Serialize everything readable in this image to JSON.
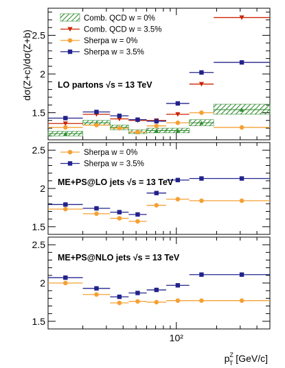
{
  "chart_data": {
    "type": "line",
    "x_scale": "log",
    "x_axis_label": "p_T^Z [GeV/c]",
    "x_tick_labels": [
      "10²"
    ],
    "x_bins": [
      [
        11,
        20
      ],
      [
        20,
        32
      ],
      [
        32,
        44
      ],
      [
        44,
        60
      ],
      [
        60,
        84
      ],
      [
        84,
        125
      ],
      [
        125,
        190
      ],
      [
        190,
        500
      ]
    ],
    "panels": [
      {
        "ylabel": "dσ(Z+c)/dσ(Z+b)",
        "ylim": [
          1.15,
          2.85
        ],
        "yticks": [
          "1.5",
          "2",
          "2.5"
        ],
        "label_prefix": "LO partons",
        "label_energy": "√s = 13 TeV",
        "legend": [
          {
            "label": "Comb. QCD  w = 0%",
            "series": "comb0"
          },
          {
            "label": "Comb. QCD w = 3.5%",
            "series": "comb35"
          },
          {
            "label": "Sherpa w = 0%",
            "series": "sherpa0"
          },
          {
            "label": "Sherpa w = 3.5%",
            "series": "sherpa35"
          }
        ],
        "series": [
          {
            "id": "comb0",
            "color": "#2e8b2e",
            "marker": "band",
            "values": [
              1.23,
              1.37,
              1.31,
              1.25,
              1.27,
              1.27,
              1.37,
              1.54
            ],
            "band": [
              [
                1.2,
                1.26
              ],
              [
                1.34,
                1.4
              ],
              [
                1.28,
                1.34
              ],
              [
                1.23,
                1.28
              ],
              [
                1.24,
                1.3
              ],
              [
                1.24,
                1.3
              ],
              [
                1.33,
                1.41
              ],
              [
                1.48,
                1.61
              ]
            ]
          },
          {
            "id": "comb35",
            "color": "#cc2200",
            "marker": "triangle",
            "values": [
              1.36,
              1.48,
              1.42,
              1.4,
              1.4,
              1.48,
              1.87,
              2.73
            ]
          },
          {
            "id": "sherpa0",
            "color": "#f5a033",
            "marker": "circle",
            "values": [
              1.31,
              1.34,
              1.3,
              1.25,
              1.33,
              1.37,
              1.5,
              1.31
            ]
          },
          {
            "id": "sherpa35",
            "color": "#22228c",
            "marker": "square",
            "values": [
              1.43,
              1.51,
              1.46,
              1.41,
              1.39,
              1.62,
              2.02,
              2.15
            ]
          }
        ]
      },
      {
        "ylim": [
          1.4,
          2.6
        ],
        "yticks": [
          "1.5",
          "2",
          "2.5"
        ],
        "label_prefix": "ME+PS@LO jets",
        "label_energy": "√s = 13 TeV",
        "legend": [
          {
            "label": "Sherpa w = 0%",
            "series": "sherpa0"
          },
          {
            "label": "Sherpa w = 3.5%",
            "series": "sherpa35"
          }
        ],
        "series": [
          {
            "id": "sherpa0",
            "color": "#f5a033",
            "marker": "circle",
            "values": [
              1.73,
              1.67,
              1.61,
              1.57,
              1.78,
              1.86,
              1.84,
              1.84
            ]
          },
          {
            "id": "sherpa35",
            "color": "#22228c",
            "marker": "square",
            "values": [
              1.79,
              1.74,
              1.69,
              1.66,
              1.94,
              2.11,
              2.13,
              2.13
            ]
          }
        ]
      },
      {
        "ylim": [
          1.4,
          2.6
        ],
        "yticks": [
          "1.5",
          "2",
          "2.5"
        ],
        "label_prefix": "ME+PS@NLO jets",
        "label_energy": "√s = 13 TeV",
        "legend": [],
        "series": [
          {
            "id": "sherpa0",
            "color": "#f5a033",
            "marker": "circle",
            "values": [
              2.0,
              1.85,
              1.74,
              1.76,
              1.75,
              1.77,
              1.77,
              1.77
            ]
          },
          {
            "id": "sherpa35",
            "color": "#22228c",
            "marker": "square",
            "values": [
              2.07,
              1.93,
              1.82,
              1.87,
              1.91,
              1.97,
              2.11,
              2.11
            ]
          }
        ]
      }
    ]
  }
}
